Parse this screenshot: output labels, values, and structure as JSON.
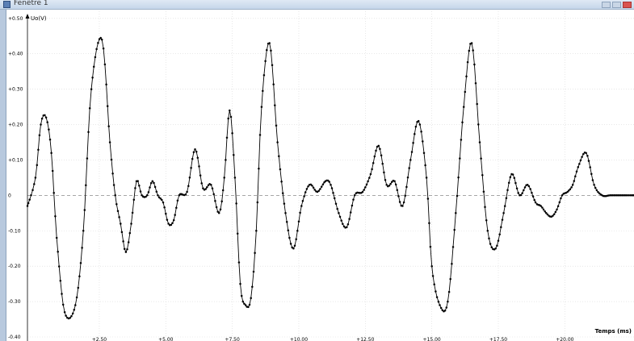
{
  "window": {
    "title": "Fenêtre 1"
  },
  "chart_data": {
    "type": "line",
    "title": "",
    "xlabel": "Temps (ms)",
    "ylabel": "Uo(V)",
    "xlim": [
      -0.2,
      22.6
    ],
    "ylim": [
      -0.4,
      0.52
    ],
    "grid": true,
    "yticks": [
      0.5,
      0.4,
      0.3,
      0.2,
      0.1,
      0,
      -0.1,
      -0.2,
      -0.3,
      -0.4
    ],
    "ytick_labels": [
      "+0.50",
      "+0.40",
      "+0.30",
      "+0.20",
      "+0.10",
      "0",
      "-0.10",
      "-0.20",
      "-0.30",
      "-0.40"
    ],
    "xticks": [
      2.5,
      5.0,
      7.5,
      10.0,
      12.5,
      15.0,
      17.5,
      20.0
    ],
    "xtick_labels": [
      "+2.50",
      "+5.00",
      "+7.50",
      "+10.00",
      "+12.50",
      "+15.00",
      "+17.50",
      "+20.00"
    ],
    "series": [
      {
        "x": [
          -0.2,
          0.1,
          0.3,
          0.5,
          0.7,
          0.9,
          1.2,
          1.6,
          1.9,
          2.2,
          2.6,
          2.9,
          3.1,
          3.3,
          3.5,
          3.7,
          3.9,
          4.1,
          4.3,
          4.5,
          4.7,
          4.9,
          5.1,
          5.3,
          5.5,
          5.8,
          6.1,
          6.4,
          6.7,
          7.0,
          7.2,
          7.4,
          7.6,
          7.8,
          8.0,
          8.2,
          8.4,
          8.6,
          8.9,
          9.2,
          9.5,
          9.8,
          10.1,
          10.4,
          10.7,
          11.0,
          11.2,
          11.5,
          11.8,
          12.1,
          12.4,
          12.7,
          13.0,
          13.3,
          13.6,
          13.9,
          14.2,
          14.5,
          14.8,
          15.0,
          15.3,
          15.6,
          15.9,
          16.2,
          16.5,
          16.8,
          17.1,
          17.4,
          17.7,
          18.0,
          18.3,
          18.6,
          18.9,
          19.1,
          19.3,
          19.5,
          19.7,
          19.9,
          20.1,
          20.3,
          20.5,
          20.8,
          21.1,
          21.4,
          21.7,
          22.0,
          22.3,
          22.6
        ],
        "y": [
          -0.03,
          0.05,
          0.2,
          0.22,
          0.12,
          -0.12,
          -0.33,
          -0.31,
          -0.1,
          0.3,
          0.44,
          0.15,
          0.0,
          -0.08,
          -0.16,
          -0.08,
          0.04,
          0.0,
          0.0,
          0.04,
          0.0,
          -0.02,
          -0.08,
          -0.07,
          0.0,
          0.01,
          0.13,
          0.02,
          0.03,
          -0.05,
          0.05,
          0.24,
          0.05,
          -0.25,
          -0.31,
          -0.29,
          -0.1,
          0.25,
          0.43,
          0.15,
          -0.05,
          -0.15,
          -0.03,
          0.03,
          0.01,
          0.04,
          0.03,
          -0.05,
          -0.09,
          0.0,
          0.01,
          0.06,
          0.14,
          0.03,
          0.04,
          -0.03,
          0.1,
          0.21,
          0.05,
          -0.2,
          -0.31,
          -0.3,
          -0.05,
          0.25,
          0.43,
          0.15,
          -0.1,
          -0.15,
          -0.05,
          0.06,
          0.0,
          0.03,
          -0.02,
          -0.03,
          -0.05,
          -0.06,
          -0.04,
          0.0,
          0.01,
          0.03,
          0.08,
          0.12,
          0.03,
          0.0,
          0.0,
          0.0,
          0.0,
          0.0
        ]
      }
    ]
  }
}
